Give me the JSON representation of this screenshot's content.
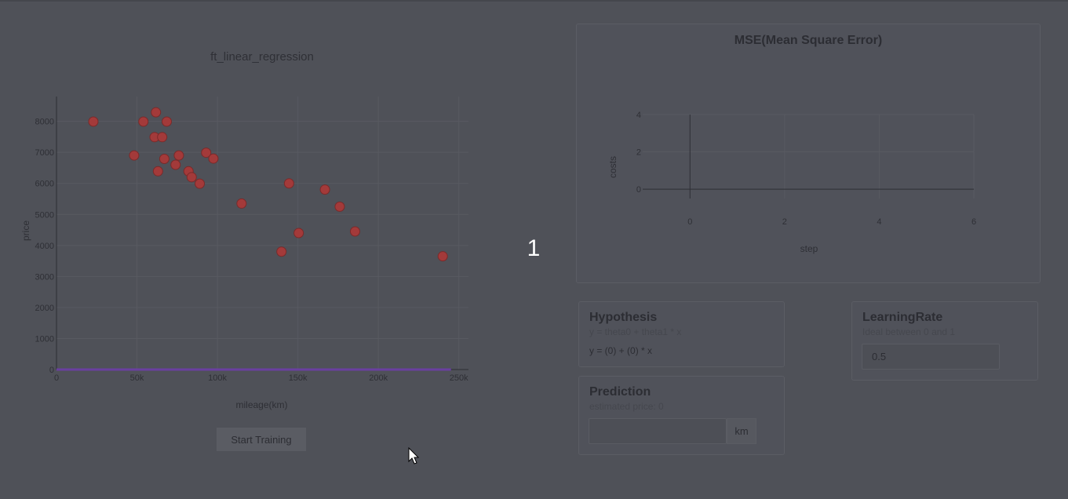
{
  "scatter_chart": {
    "title": "ft_linear_regression",
    "xlabel": "mileage(km)",
    "ylabel": "price",
    "x_ticks": [
      "0",
      "50k",
      "100k",
      "150k",
      "200k",
      "250k"
    ],
    "y_ticks": [
      "0",
      "1000",
      "2000",
      "3000",
      "4000",
      "5000",
      "6000",
      "7000",
      "8000"
    ]
  },
  "mse_chart": {
    "title": "MSE(Mean Square Error)",
    "xlabel": "step",
    "ylabel": "costs",
    "x_ticks": [
      "0",
      "2",
      "4",
      "6"
    ],
    "y_ticks": [
      "0",
      "2",
      "4"
    ]
  },
  "chart_data": [
    {
      "type": "scatter",
      "title": "ft_linear_regression",
      "xlabel": "mileage(km)",
      "ylabel": "price",
      "xlim": [
        0,
        250000
      ],
      "ylim": [
        0,
        8800
      ],
      "series": [
        {
          "type": "scatter",
          "color": "#a33a3a",
          "points": [
            [
              22899,
              7990
            ],
            [
              48235,
              6900
            ],
            [
              54000,
              7990
            ],
            [
              60949,
              7490
            ],
            [
              61789,
              8290
            ],
            [
              63060,
              6390
            ],
            [
              65674,
              7490
            ],
            [
              67000,
              6790
            ],
            [
              68500,
              7990
            ],
            [
              74000,
              6600
            ],
            [
              76025,
              6900
            ],
            [
              82029,
              6390
            ],
            [
              84000,
              6200
            ],
            [
              89000,
              5990
            ],
            [
              93000,
              6990
            ],
            [
              97500,
              6800
            ],
            [
              115000,
              5350
            ],
            [
              139800,
              3800
            ],
            [
              144500,
              5999
            ],
            [
              150500,
              4400
            ],
            [
              166800,
              5800
            ],
            [
              176000,
              5250
            ],
            [
              185530,
              4450
            ],
            [
              240000,
              3650
            ]
          ]
        },
        {
          "type": "line",
          "color": "#6a3fa0",
          "points": [
            [
              0,
              0
            ],
            [
              250000,
              0
            ]
          ]
        }
      ]
    },
    {
      "type": "line",
      "title": "MSE(Mean Square Error)",
      "xlabel": "step",
      "ylabel": "costs",
      "xlim": [
        -1,
        6
      ],
      "ylim": [
        -0.5,
        4
      ],
      "series": []
    }
  ],
  "hypothesis": {
    "title": "Hypothesis",
    "subtitle": "y = theta0 + theta1 * x",
    "formula": "y = (0) + (0) * x"
  },
  "prediction": {
    "title": "Prediction",
    "subtitle": "estimated price: 0",
    "input_value": "",
    "unit": "km"
  },
  "learning_rate": {
    "title": "LearningRate",
    "subtitle": "Ideal between 0 and 1",
    "value": "0.5"
  },
  "train_button": {
    "label": "Start Training"
  },
  "counter": "1"
}
